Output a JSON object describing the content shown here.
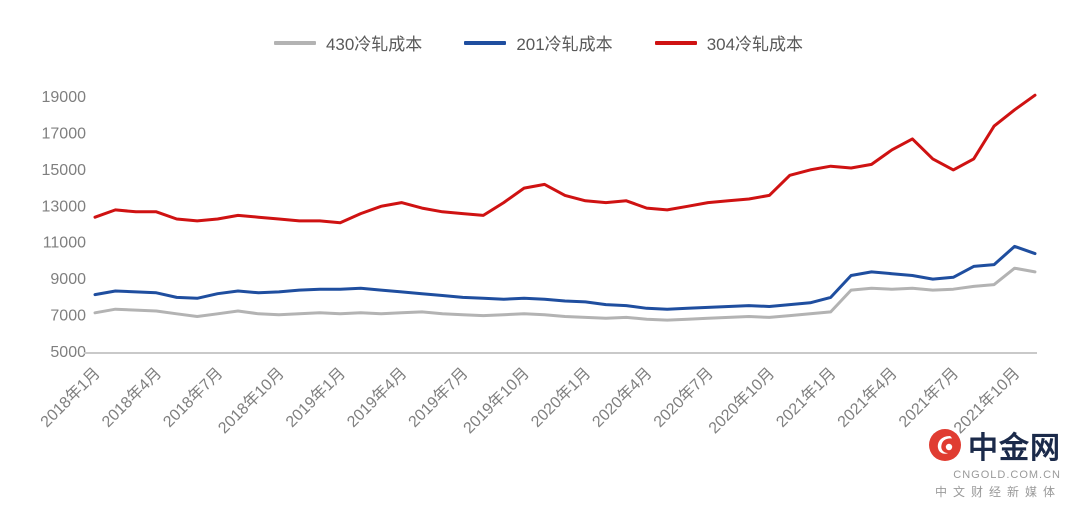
{
  "chart_data": {
    "type": "line",
    "title": "",
    "xlabel": "",
    "ylabel": "",
    "ylim": [
      5000,
      19000
    ],
    "yticks": [
      5000,
      7000,
      9000,
      11000,
      13000,
      15000,
      17000,
      19000
    ],
    "grid": false,
    "legend_position": "top",
    "x_tick_indices": [
      0,
      3,
      6,
      9,
      12,
      15,
      18,
      21,
      24,
      27,
      30,
      33,
      36,
      39,
      42,
      45
    ],
    "x_tick_labels": [
      "2018年1月",
      "2018年4月",
      "2018年7月",
      "2018年10月",
      "2019年1月",
      "2019年4月",
      "2019年7月",
      "2019年10月",
      "2020年1月",
      "2020年4月",
      "2020年7月",
      "2020年10月",
      "2021年1月",
      "2021年4月",
      "2021年7月",
      "2021年10月"
    ],
    "series": [
      {
        "name": "430冷轧成本",
        "color": "#b3b3b3",
        "values": [
          7150,
          7350,
          7300,
          7250,
          7100,
          6950,
          7100,
          7250,
          7100,
          7050,
          7100,
          7150,
          7100,
          7150,
          7100,
          7150,
          7200,
          7100,
          7050,
          7000,
          7050,
          7100,
          7050,
          6950,
          6900,
          6850,
          6900,
          6800,
          6750,
          6800,
          6850,
          6900,
          6950,
          6900,
          7000,
          7100,
          7200,
          8400,
          8500,
          8450,
          8500,
          8400,
          8450,
          8600,
          8700,
          9600,
          9400
        ]
      },
      {
        "name": "201冷轧成本",
        "color": "#1f4e9f",
        "values": [
          8150,
          8350,
          8300,
          8250,
          8000,
          7950,
          8200,
          8350,
          8250,
          8300,
          8400,
          8450,
          8450,
          8500,
          8400,
          8300,
          8200,
          8100,
          8000,
          7950,
          7900,
          7950,
          7900,
          7800,
          7750,
          7600,
          7550,
          7400,
          7350,
          7400,
          7450,
          7500,
          7550,
          7500,
          7600,
          7700,
          8000,
          9200,
          9400,
          9300,
          9200,
          9000,
          9100,
          9700,
          9800,
          10800,
          10400
        ]
      },
      {
        "name": "304冷轧成本",
        "color": "#cf1212",
        "values": [
          12400,
          12800,
          12700,
          12700,
          12300,
          12200,
          12300,
          12500,
          12400,
          12300,
          12200,
          12200,
          12100,
          12600,
          13000,
          13200,
          12900,
          12700,
          12600,
          12500,
          13200,
          14000,
          14200,
          13600,
          13300,
          13200,
          13300,
          12900,
          12800,
          13000,
          13200,
          13300,
          13400,
          13600,
          14700,
          15000,
          15200,
          15100,
          15300,
          16100,
          16700,
          15600,
          15000,
          15600,
          17400,
          18300,
          19100
        ]
      }
    ]
  },
  "watermark": {
    "brand": "中金网",
    "domain": "CNGOLD.COM.CN",
    "tagline": "中文财经新媒体"
  }
}
